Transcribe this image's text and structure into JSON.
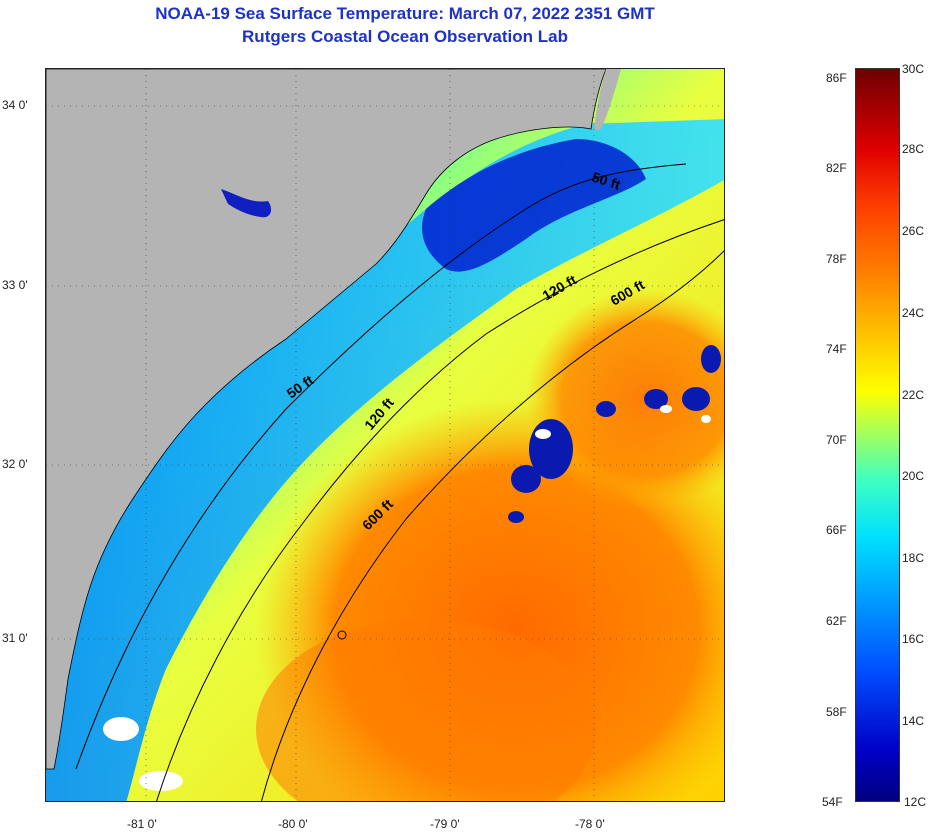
{
  "title_line1": "NOAA-19 Sea Surface Temperature:  March 07, 2022 2351 GMT",
  "title_line2": "Rutgers Coastal Ocean Observation Lab",
  "map": {
    "lat_labels": [
      {
        "text": "34 0'",
        "lat": 34
      },
      {
        "text": "33 0'",
        "lat": 33
      },
      {
        "text": "32 0'",
        "lat": 32
      },
      {
        "text": "31 0'",
        "lat": 31
      }
    ],
    "lon_labels": [
      {
        "text": "-81 0'",
        "lon": -81
      },
      {
        "text": "-80 0'",
        "lon": -80
      },
      {
        "text": "-79 0'",
        "lon": -79
      },
      {
        "text": "-78 0'",
        "lon": -78
      }
    ],
    "depth_labels": [
      {
        "text": "50 ft"
      },
      {
        "text": "50 ft"
      },
      {
        "text": "120 ft"
      },
      {
        "text": "120 ft"
      },
      {
        "text": "600 ft"
      },
      {
        "text": "600 ft"
      }
    ],
    "colors": {
      "land": "#b4b4b4",
      "cold": "#0020c0",
      "warm": "#ff7000",
      "contour": "#000000"
    }
  },
  "colorbar": {
    "fahrenheit": [
      "86F",
      "82F",
      "78F",
      "74F",
      "70F",
      "66F",
      "62F",
      "58F",
      "54F"
    ],
    "celsius": [
      "30C",
      "28C",
      "26C",
      "24C",
      "22C",
      "20C",
      "18C",
      "16C",
      "14C",
      "12C"
    ],
    "range_c": [
      12,
      30
    ],
    "range_f": [
      54,
      86
    ]
  }
}
